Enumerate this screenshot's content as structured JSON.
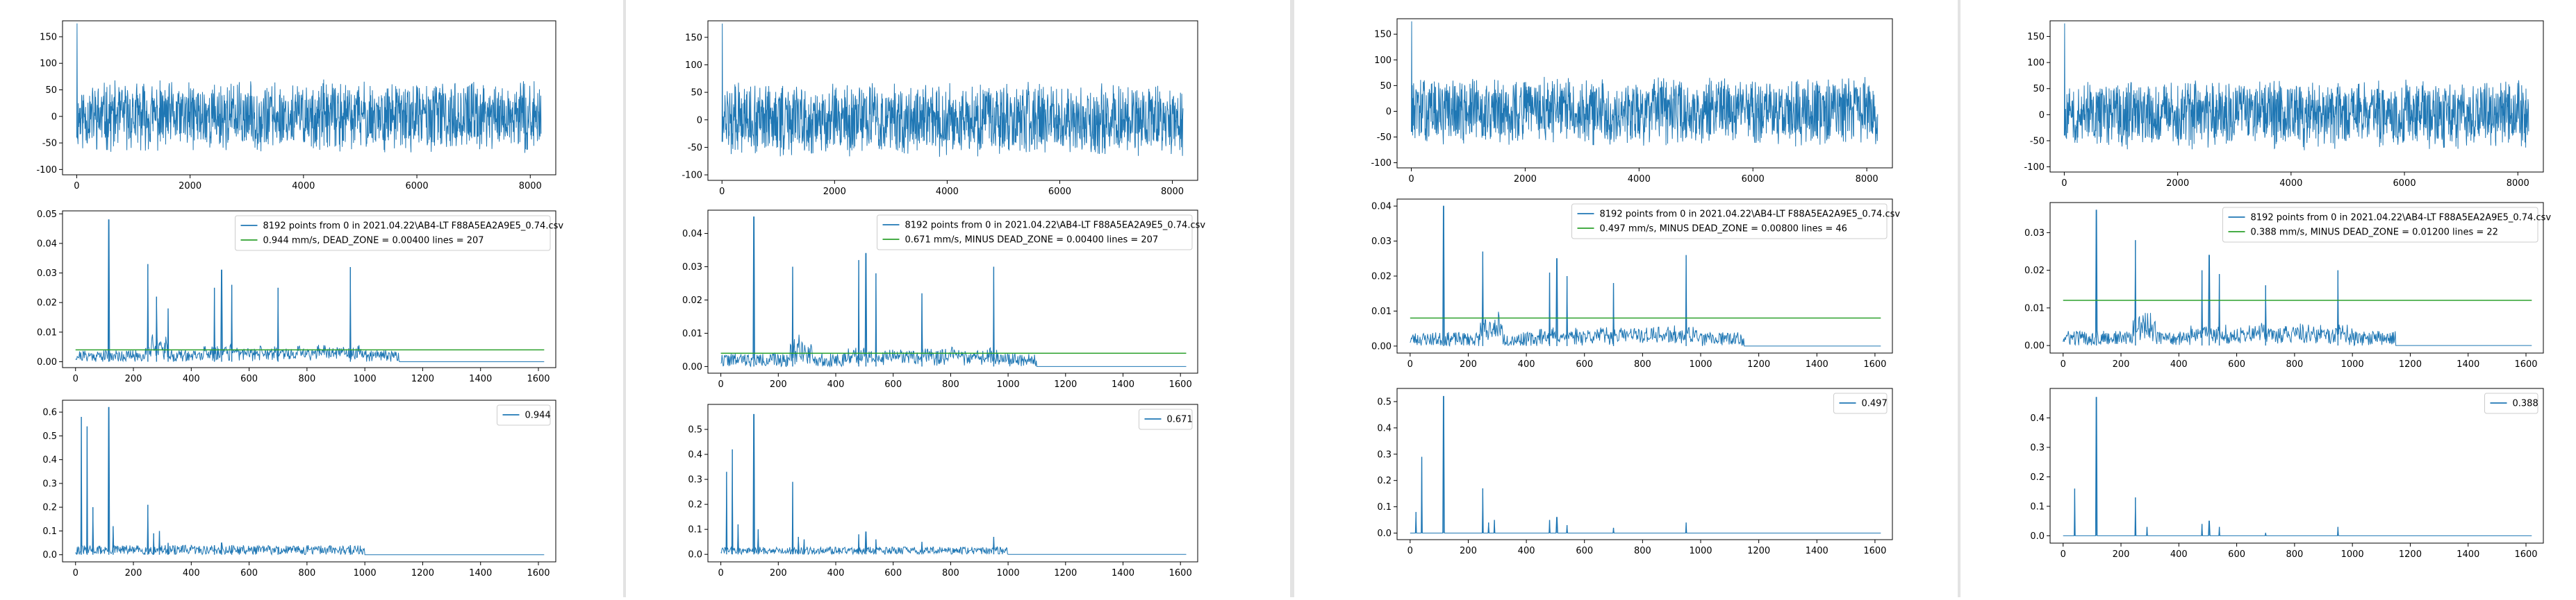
{
  "panels": [
    {
      "name": "panel-1",
      "plots": [
        {
          "kind": "wave",
          "xlim": [
            -250,
            8450
          ],
          "ylim": [
            -110,
            180
          ],
          "xticks": [
            0,
            2000,
            4000,
            6000,
            8000
          ],
          "yticks": [
            150,
            100,
            50,
            0,
            -50,
            -100
          ],
          "spike": 175,
          "seed": 11
        },
        {
          "kind": "spec",
          "xlim": [
            -45,
            1660
          ],
          "ylim": [
            -0.002,
            0.051
          ],
          "xticks": [
            0,
            200,
            400,
            600,
            800,
            1000,
            1200,
            1400,
            1600
          ],
          "yticks": [
            0.05,
            0.04,
            0.03,
            0.02,
            0.01,
            0.0
          ],
          "ytick_labels": [
            "0.05",
            "0.04",
            "0.03",
            "0.02",
            "0.01",
            "0.00"
          ],
          "hline": 0.004,
          "peaks": [
            [
              115,
              0.048
            ],
            [
              250,
              0.033
            ],
            [
              280,
              0.022
            ],
            [
              320,
              0.018
            ],
            [
              480,
              0.025
            ],
            [
              505,
              0.031
            ],
            [
              540,
              0.026
            ],
            [
              700,
              0.025
            ],
            [
              950,
              0.032
            ]
          ],
          "noise_end": 1120,
          "noise_amp": 0.002,
          "seed": 21,
          "legend": [
            "8192 points from 0  in  2021.04.22\\AB4-LT F88A5EA2A9E5_0.74.csv",
            "0.944 mm/s,  DEAD_ZONE = 0.00400     lines = 207"
          ]
        },
        {
          "kind": "peaks",
          "xlim": [
            -45,
            1660
          ],
          "ylim": [
            -0.03,
            0.65
          ],
          "xticks": [
            0,
            200,
            400,
            600,
            800,
            1000,
            1200,
            1400,
            1600
          ],
          "yticks": [
            0.6,
            0.5,
            0.4,
            0.3,
            0.2,
            0.1,
            0.0
          ],
          "ytick_labels": [
            "0.6",
            "0.5",
            "0.4",
            "0.3",
            "0.2",
            "0.1",
            "0.0"
          ],
          "peaks": [
            [
              20,
              0.58
            ],
            [
              40,
              0.54
            ],
            [
              60,
              0.2
            ],
            [
              115,
              0.62
            ],
            [
              130,
              0.12
            ],
            [
              250,
              0.21
            ],
            [
              270,
              0.09
            ],
            [
              290,
              0.1
            ],
            [
              320,
              0.05
            ],
            [
              480,
              0.04
            ],
            [
              505,
              0.05
            ],
            [
              540,
              0.04
            ],
            [
              700,
              0.03
            ],
            [
              950,
              0.04
            ]
          ],
          "noise_end": 1000,
          "noise_amp": 0.02,
          "seed": 31,
          "legend": [
            "0.944"
          ]
        }
      ]
    },
    {
      "name": "panel-2",
      "plots": [
        {
          "kind": "wave",
          "xlim": [
            -250,
            8450
          ],
          "ylim": [
            -110,
            180
          ],
          "xticks": [
            0,
            2000,
            4000,
            6000,
            8000
          ],
          "yticks": [
            150,
            100,
            50,
            0,
            -50,
            -100
          ],
          "spike": 175,
          "seed": 12
        },
        {
          "kind": "spec",
          "xlim": [
            -45,
            1660
          ],
          "ylim": [
            -0.002,
            0.047
          ],
          "xticks": [
            0,
            200,
            400,
            600,
            800,
            1000,
            1200,
            1400,
            1600
          ],
          "yticks": [
            0.04,
            0.03,
            0.02,
            0.01,
            0.0
          ],
          "ytick_labels": [
            "0.04",
            "0.03",
            "0.02",
            "0.01",
            "0.00"
          ],
          "hline": 0.004,
          "peaks": [
            [
              115,
              0.045
            ],
            [
              250,
              0.03
            ],
            [
              480,
              0.032
            ],
            [
              505,
              0.034
            ],
            [
              540,
              0.028
            ],
            [
              700,
              0.022
            ],
            [
              950,
              0.03
            ]
          ],
          "noise_end": 1100,
          "noise_amp": 0.002,
          "seed": 22,
          "legend": [
            "8192 points from 0  in  2021.04.22\\AB4-LT F88A5EA2A9E5_0.74.csv",
            "0.671 mm/s,  MINUS  DEAD_ZONE = 0.00400     lines = 207"
          ]
        },
        {
          "kind": "peaks",
          "xlim": [
            -45,
            1660
          ],
          "ylim": [
            -0.03,
            0.6
          ],
          "xticks": [
            0,
            200,
            400,
            600,
            800,
            1000,
            1200,
            1400,
            1600
          ],
          "yticks": [
            0.5,
            0.4,
            0.3,
            0.2,
            0.1,
            0.0
          ],
          "ytick_labels": [
            "0.5",
            "0.4",
            "0.3",
            "0.2",
            "0.1",
            "0.0"
          ],
          "peaks": [
            [
              20,
              0.33
            ],
            [
              40,
              0.42
            ],
            [
              60,
              0.12
            ],
            [
              115,
              0.56
            ],
            [
              130,
              0.1
            ],
            [
              250,
              0.29
            ],
            [
              270,
              0.07
            ],
            [
              290,
              0.06
            ],
            [
              480,
              0.08
            ],
            [
              505,
              0.09
            ],
            [
              540,
              0.06
            ],
            [
              700,
              0.05
            ],
            [
              950,
              0.07
            ]
          ],
          "noise_end": 1000,
          "noise_amp": 0.015,
          "seed": 32,
          "legend": [
            "0.671"
          ]
        }
      ]
    },
    {
      "name": "panel-3",
      "plots": [
        {
          "kind": "wave",
          "xlim": [
            -250,
            8450
          ],
          "ylim": [
            -110,
            180
          ],
          "xticks": [
            0,
            2000,
            4000,
            6000,
            8000
          ],
          "yticks": [
            150,
            100,
            50,
            0,
            -50,
            -100
          ],
          "spike": 175,
          "seed": 13
        },
        {
          "kind": "spec",
          "xlim": [
            -45,
            1660
          ],
          "ylim": [
            -0.002,
            0.042
          ],
          "xticks": [
            0,
            200,
            400,
            600,
            800,
            1000,
            1200,
            1400,
            1600
          ],
          "yticks": [
            0.04,
            0.03,
            0.02,
            0.01,
            0.0
          ],
          "ytick_labels": [
            "0.04",
            "0.03",
            "0.02",
            "0.01",
            "0.00"
          ],
          "hline": 0.008,
          "peaks": [
            [
              115,
              0.04
            ],
            [
              250,
              0.027
            ],
            [
              480,
              0.021
            ],
            [
              505,
              0.025
            ],
            [
              540,
              0.02
            ],
            [
              700,
              0.018
            ],
            [
              950,
              0.026
            ]
          ],
          "noise_end": 1150,
          "noise_amp": 0.002,
          "seed": 23,
          "legend": [
            "8192 points from 0  in  2021.04.22\\AB4-LT F88A5EA2A9E5_0.74.csv",
            "0.497 mm/s,  MINUS  DEAD_ZONE = 0.00800     lines = 46"
          ]
        },
        {
          "kind": "peaks",
          "xlim": [
            -45,
            1660
          ],
          "ylim": [
            -0.025,
            0.55
          ],
          "xticks": [
            0,
            200,
            400,
            600,
            800,
            1000,
            1200,
            1400,
            1600
          ],
          "yticks": [
            0.5,
            0.4,
            0.3,
            0.2,
            0.1,
            0.0
          ],
          "ytick_labels": [
            "0.5",
            "0.4",
            "0.3",
            "0.2",
            "0.1",
            "0.0"
          ],
          "peaks": [
            [
              20,
              0.08
            ],
            [
              40,
              0.29
            ],
            [
              115,
              0.52
            ],
            [
              250,
              0.17
            ],
            [
              270,
              0.04
            ],
            [
              290,
              0.05
            ],
            [
              480,
              0.05
            ],
            [
              505,
              0.06
            ],
            [
              540,
              0.03
            ],
            [
              700,
              0.02
            ],
            [
              950,
              0.04
            ]
          ],
          "noise_end": 0,
          "noise_amp": 0.0,
          "seed": 33,
          "legend": [
            "0.497"
          ]
        }
      ]
    },
    {
      "name": "panel-4",
      "plots": [
        {
          "kind": "wave",
          "xlim": [
            -250,
            8450
          ],
          "ylim": [
            -110,
            180
          ],
          "xticks": [
            0,
            2000,
            4000,
            6000,
            8000
          ],
          "yticks": [
            150,
            100,
            50,
            0,
            -50,
            -100
          ],
          "spike": 175,
          "seed": 14
        },
        {
          "kind": "spec",
          "xlim": [
            -45,
            1660
          ],
          "ylim": [
            -0.002,
            0.038
          ],
          "xticks": [
            0,
            200,
            400,
            600,
            800,
            1000,
            1200,
            1400,
            1600
          ],
          "yticks": [
            0.03,
            0.02,
            0.01,
            0.0
          ],
          "ytick_labels": [
            "0.03",
            "0.02",
            "0.01",
            "0.00"
          ],
          "hline": 0.012,
          "peaks": [
            [
              115,
              0.036
            ],
            [
              250,
              0.028
            ],
            [
              480,
              0.02
            ],
            [
              505,
              0.024
            ],
            [
              540,
              0.019
            ],
            [
              700,
              0.016
            ],
            [
              950,
              0.02
            ]
          ],
          "noise_end": 1150,
          "noise_amp": 0.002,
          "seed": 24,
          "legend": [
            "8192 points from 0  in  2021.04.22\\AB4-LT F88A5EA2A9E5_0.74.csv",
            "0.388 mm/s,  MINUS  DEAD_ZONE = 0.01200     lines = 22"
          ]
        },
        {
          "kind": "peaks",
          "xlim": [
            -45,
            1660
          ],
          "ylim": [
            -0.025,
            0.5
          ],
          "xticks": [
            0,
            200,
            400,
            600,
            800,
            1000,
            1200,
            1400,
            1600
          ],
          "yticks": [
            0.4,
            0.3,
            0.2,
            0.1,
            0.0
          ],
          "ytick_labels": [
            "0.4",
            "0.3",
            "0.2",
            "0.1",
            "0.0"
          ],
          "peaks": [
            [
              40,
              0.16
            ],
            [
              115,
              0.47
            ],
            [
              250,
              0.13
            ],
            [
              290,
              0.03
            ],
            [
              480,
              0.04
            ],
            [
              505,
              0.05
            ],
            [
              540,
              0.03
            ],
            [
              700,
              0.01
            ],
            [
              950,
              0.03
            ]
          ],
          "noise_end": 0,
          "noise_amp": 0.0,
          "seed": 34,
          "legend": [
            "0.388"
          ]
        }
      ]
    }
  ],
  "colors": {
    "line": "#1f77b4",
    "hline": "#2ca02c",
    "frame": "#000000",
    "text": "#000000"
  },
  "chart_data": [
    {
      "type": "line",
      "series": [
        {
          "name": "8192 points from 0  in  2021.04.22\\AB4-LT F88A5EA2A9E5_0.74.csv"
        },
        {
          "name": "0.944 mm/s,  DEAD_ZONE = 0.00400     lines = 207",
          "values": [
            0.004
          ]
        }
      ]
    },
    {
      "type": "line",
      "series": [
        {
          "name": "0.944"
        }
      ]
    },
    {
      "type": "line",
      "series": [
        {
          "name": "8192 points from 0  in  2021.04.22\\AB4-LT F88A5EA2A9E5_0.74.csv"
        },
        {
          "name": "0.671 mm/s,  MINUS  DEAD_ZONE = 0.00400     lines = 207",
          "values": [
            0.004
          ]
        }
      ]
    },
    {
      "type": "line",
      "series": [
        {
          "name": "0.671"
        }
      ]
    },
    {
      "type": "line",
      "series": [
        {
          "name": "8192 points from 0  in  2021.04.22\\AB4-LT F88A5EA2A9E5_0.74.csv"
        },
        {
          "name": "0.497 mm/s,  MINUS  DEAD_ZONE = 0.00800     lines = 46",
          "values": [
            0.008
          ]
        }
      ]
    },
    {
      "type": "line",
      "series": [
        {
          "name": "0.497"
        }
      ]
    },
    {
      "type": "line",
      "series": [
        {
          "name": "8192 points from 0  in  2021.04.22\\AB4-LT F88A5EA2A9E5_0.74.csv"
        },
        {
          "name": "0.388 mm/s,  MINUS  DEAD_ZONE = 0.01200     lines = 22",
          "values": [
            0.012
          ]
        }
      ]
    },
    {
      "type": "line",
      "series": [
        {
          "name": "0.388"
        }
      ]
    }
  ]
}
